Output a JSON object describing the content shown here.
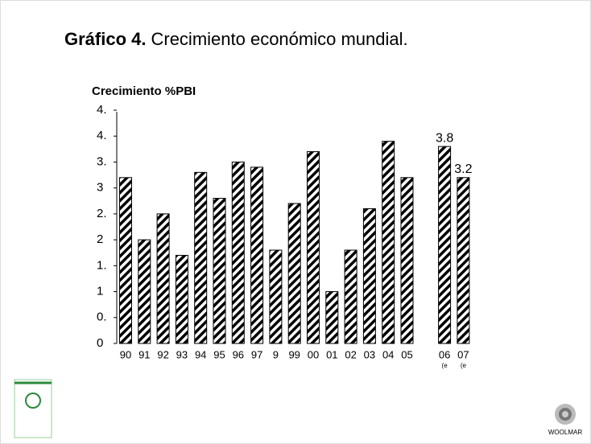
{
  "chart_data": {
    "type": "bar",
    "title_bold": "Gráfico 4.",
    "title": "Crecimiento económico mundial.",
    "y_label": "Crecimiento %PBI",
    "categories": [
      "90",
      "91",
      "92",
      "93",
      "94",
      "95",
      "96",
      "97",
      "9",
      "99",
      "00",
      "01",
      "02",
      "03",
      "04",
      "05",
      null,
      "06",
      "07"
    ],
    "category_notes": [
      null,
      null,
      null,
      null,
      null,
      null,
      null,
      null,
      null,
      null,
      null,
      null,
      null,
      null,
      null,
      null,
      null,
      "(e",
      "(e"
    ],
    "values": [
      3.2,
      2.0,
      2.5,
      1.7,
      3.3,
      2.8,
      3.5,
      3.4,
      1.8,
      2.7,
      3.7,
      1.0,
      1.8,
      2.6,
      3.9,
      3.2,
      null,
      3.8,
      3.2
    ],
    "value_labels": [
      null,
      null,
      null,
      null,
      null,
      null,
      null,
      null,
      null,
      null,
      null,
      null,
      null,
      null,
      null,
      null,
      null,
      "3.8",
      "3.2"
    ],
    "color": "#000000",
    "ylim": [
      0,
      4.5
    ],
    "yticks": [
      0,
      {
        "value": 0.5,
        "label": "0."
      },
      1,
      {
        "value": 1.5,
        "label": "1."
      },
      2,
      {
        "value": 2.5,
        "label": "2."
      },
      3,
      {
        "value": 3.5,
        "label": "3."
      },
      {
        "value": 4,
        "label": "4."
      },
      {
        "value": 4.5,
        "label": "4."
      }
    ],
    "logo_text": "WOOLMAR"
  }
}
